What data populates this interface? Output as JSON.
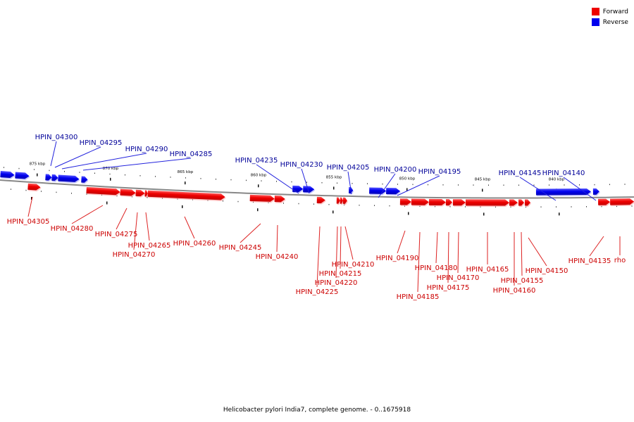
{
  "legend": {
    "forward_label": "Forward",
    "reverse_label": "Reverse",
    "forward_color": "#ee0000",
    "reverse_color": "#0000ee"
  },
  "caption": "Helicobacter pylori India7, complete genome. - 0..1675918",
  "colors": {
    "forward_label": "#cc0000",
    "reverse_label": "#000099",
    "backbone": "#888888"
  },
  "chart_data": {
    "type": "linear-genome-map",
    "scale_labels": [
      {
        "position_kbp": 875,
        "text": "875 kbp"
      },
      {
        "position_kbp": 870,
        "text": "870 kbp"
      },
      {
        "position_kbp": 865,
        "text": "865 kbp"
      },
      {
        "position_kbp": 860,
        "text": "860 kbp"
      },
      {
        "position_kbp": 855,
        "text": "855 kbp"
      },
      {
        "position_kbp": 850,
        "text": "850 kbp"
      },
      {
        "position_kbp": 845,
        "text": "845 kbp"
      },
      {
        "position_kbp": 840,
        "text": "840 kbp"
      }
    ],
    "genes": [
      {
        "name": "",
        "strand": "reverse"
      },
      {
        "name": "",
        "strand": "reverse"
      },
      {
        "name": "HPIN_04305",
        "strand": "forward"
      },
      {
        "name": "HPIN_04300",
        "strand": "reverse"
      },
      {
        "name": "HPIN_04295",
        "strand": "reverse"
      },
      {
        "name": "HPIN_04290",
        "strand": "reverse"
      },
      {
        "name": "HPIN_04285",
        "strand": "reverse"
      },
      {
        "name": "HPIN_04280",
        "strand": "forward"
      },
      {
        "name": "HPIN_04275",
        "strand": "forward"
      },
      {
        "name": "HPIN_04270",
        "strand": "forward"
      },
      {
        "name": "HPIN_04265",
        "strand": "forward"
      },
      {
        "name": "HPIN_04260",
        "strand": "forward"
      },
      {
        "name": "HPIN_04245",
        "strand": "forward"
      },
      {
        "name": "HPIN_04240",
        "strand": "forward"
      },
      {
        "name": "HPIN_04235",
        "strand": "reverse"
      },
      {
        "name": "HPIN_04230",
        "strand": "reverse"
      },
      {
        "name": "HPIN_04225",
        "strand": "forward"
      },
      {
        "name": "HPIN_04220",
        "strand": "forward"
      },
      {
        "name": "HPIN_04215",
        "strand": "forward"
      },
      {
        "name": "HPIN_04210",
        "strand": "forward"
      },
      {
        "name": "HPIN_04205",
        "strand": "reverse"
      },
      {
        "name": "HPIN_04200",
        "strand": "reverse"
      },
      {
        "name": "HPIN_04195",
        "strand": "reverse"
      },
      {
        "name": "HPIN_04190",
        "strand": "forward"
      },
      {
        "name": "HPIN_04185",
        "strand": "forward"
      },
      {
        "name": "HPIN_04180",
        "strand": "forward"
      },
      {
        "name": "HPIN_04175",
        "strand": "forward"
      },
      {
        "name": "HPIN_04170",
        "strand": "forward"
      },
      {
        "name": "HPIN_04165",
        "strand": "forward"
      },
      {
        "name": "HPIN_04160",
        "strand": "forward"
      },
      {
        "name": "HPIN_04155",
        "strand": "forward"
      },
      {
        "name": "HPIN_04150",
        "strand": "forward"
      },
      {
        "name": "HPIN_04145",
        "strand": "reverse"
      },
      {
        "name": "HPIN_04140",
        "strand": "reverse"
      },
      {
        "name": "HPIN_04135",
        "strand": "forward"
      },
      {
        "name": "rho",
        "strand": "forward"
      }
    ]
  }
}
